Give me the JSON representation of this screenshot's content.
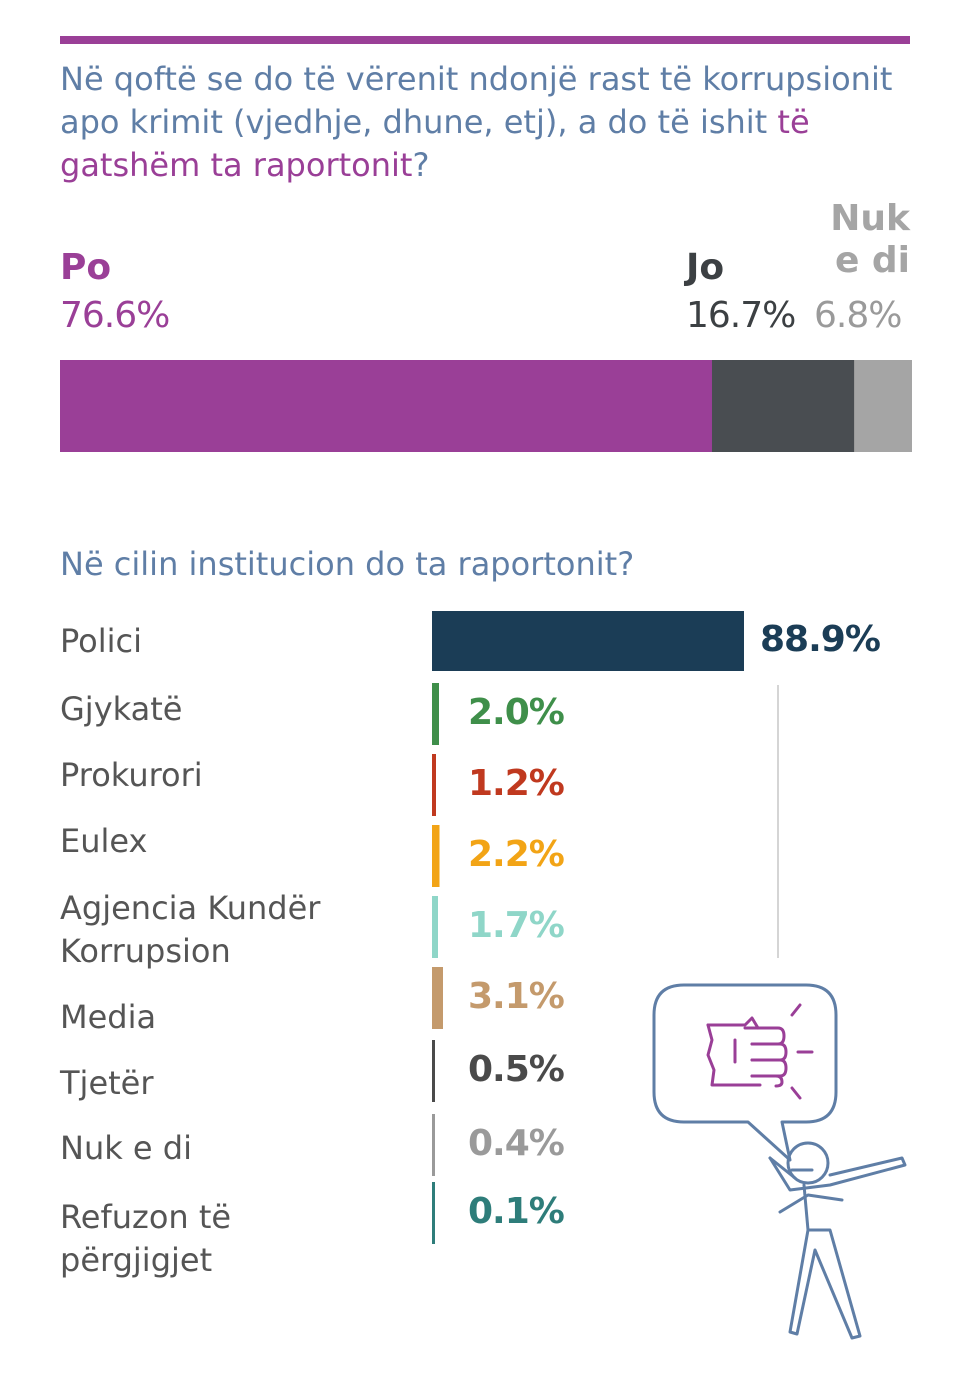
{
  "question1": {
    "prefix": "Në qoftë se do të vërenit ndonjë rast të korrupsionit apo krimit (vjedhje, dhune, etj), a do të ishit ",
    "highlight": "të gatshëm ta raportonit",
    "suffix": "?"
  },
  "question2": "Në cilin institucion do ta raportonit?",
  "colors": {
    "purple": "#9a3f97",
    "dark": "#494d51",
    "grey": "#a5a5a5",
    "navy": "#1b3d56",
    "blue_text": "#5f7ea6"
  },
  "chart_data": [
    {
      "type": "bar",
      "orientation": "horizontal-stacked",
      "title": "Në qoftë se do të vërenit ndonjë rast të korrupsionit apo krimit (vjedhje, dhune, etj), a do të ishit të gatshëm ta raportonit?",
      "categories": [
        "Po",
        "Jo",
        "Nuk e di"
      ],
      "values": [
        76.6,
        16.7,
        6.8
      ],
      "value_labels": [
        "76.6%",
        "16.7%",
        "6.8%"
      ],
      "colors": [
        "#9a3f97",
        "#494d51",
        "#a5a5a5"
      ],
      "unit": "%"
    },
    {
      "type": "bar",
      "orientation": "horizontal",
      "title": "Në cilin institucion do ta raportonit?",
      "categories": [
        "Polici",
        "Gjykatë",
        "Prokurori",
        "Eulex",
        "Agjencia Kundër Korrupsion",
        "Media",
        "Tjetër",
        "Nuk e di",
        "Refuzon të përgjigjet"
      ],
      "category_lines": [
        [
          "Polici"
        ],
        [
          "Gjykatë"
        ],
        [
          "Prokurori"
        ],
        [
          "Eulex"
        ],
        [
          "Agjencia Kundër",
          "Korrupsion"
        ],
        [
          "Media"
        ],
        [
          "Tjetër"
        ],
        [
          "Nuk e di"
        ],
        [
          "Refuzon të",
          "përgjigjet"
        ]
      ],
      "values": [
        88.9,
        2.0,
        1.2,
        2.2,
        1.7,
        3.1,
        0.5,
        0.4,
        0.1
      ],
      "value_labels": [
        "88.9%",
        "2.0%",
        "1.2%",
        "2.2%",
        "1.7%",
        "3.1%",
        "0.5%",
        "0.4%",
        "0.1%"
      ],
      "colors": [
        "#1b3d56",
        "#3f8f4a",
        "#c0391f",
        "#f2a416",
        "#8fd6c8",
        "#c49a6c",
        "#4a4a4a",
        "#9a9a9a",
        "#2e7d7a"
      ],
      "unit": "%",
      "xlim": [
        0,
        100
      ]
    }
  ]
}
